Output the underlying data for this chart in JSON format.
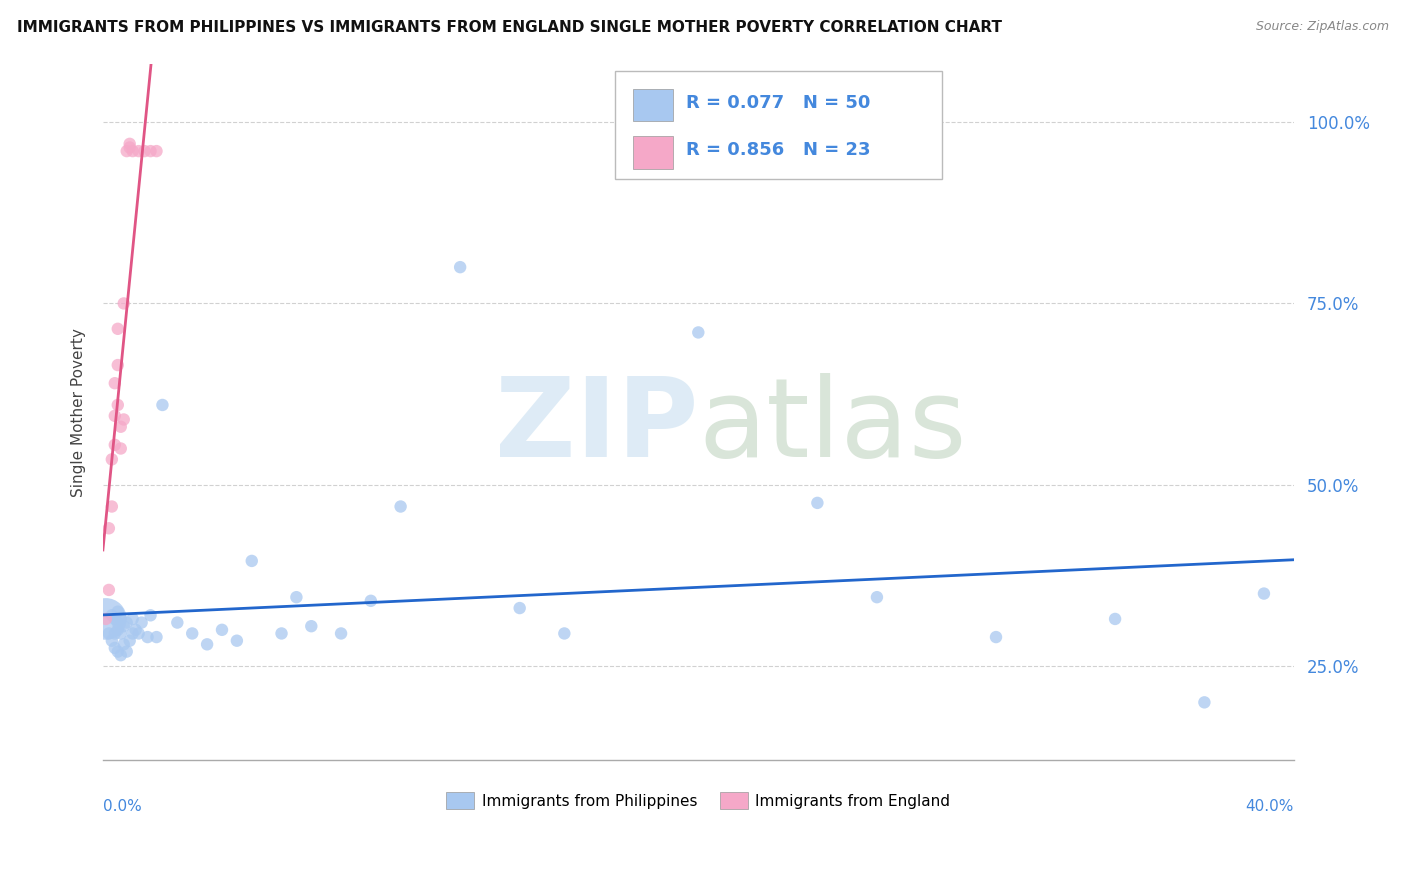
{
  "title": "IMMIGRANTS FROM PHILIPPINES VS IMMIGRANTS FROM ENGLAND SINGLE MOTHER POVERTY CORRELATION CHART",
  "source": "Source: ZipAtlas.com",
  "ylabel": "Single Mother Poverty",
  "ytick_vals": [
    0.25,
    0.5,
    0.75,
    1.0
  ],
  "ytick_labels": [
    "25.0%",
    "50.0%",
    "75.0%",
    "100.0%"
  ],
  "xlim": [
    0.0,
    0.4
  ],
  "ylim": [
    0.12,
    1.08
  ],
  "legend_label1": "Immigrants from Philippines",
  "legend_label2": "Immigrants from England",
  "R1": 0.077,
  "N1": 50,
  "R2": 0.856,
  "N2": 23,
  "color1": "#a8c8f0",
  "color2": "#f5a8c8",
  "line_color1": "#2266cc",
  "line_color2": "#e05585",
  "bg_color": "#ffffff",
  "grid_color": "#cccccc",
  "title_color": "#111111",
  "tick_color": "#4488dd",
  "philippines_x": [
    0.001,
    0.002,
    0.003,
    0.003,
    0.004,
    0.004,
    0.004,
    0.005,
    0.005,
    0.005,
    0.005,
    0.006,
    0.006,
    0.006,
    0.007,
    0.007,
    0.008,
    0.008,
    0.009,
    0.01,
    0.01,
    0.011,
    0.012,
    0.013,
    0.015,
    0.016,
    0.018,
    0.02,
    0.025,
    0.03,
    0.035,
    0.04,
    0.045,
    0.05,
    0.06,
    0.065,
    0.07,
    0.08,
    0.09,
    0.1,
    0.12,
    0.14,
    0.155,
    0.2,
    0.24,
    0.26,
    0.3,
    0.34,
    0.37,
    0.39
  ],
  "philippines_y": [
    0.315,
    0.295,
    0.285,
    0.32,
    0.275,
    0.295,
    0.315,
    0.27,
    0.3,
    0.31,
    0.325,
    0.265,
    0.295,
    0.315,
    0.28,
    0.305,
    0.27,
    0.31,
    0.285,
    0.315,
    0.295,
    0.3,
    0.295,
    0.31,
    0.29,
    0.32,
    0.29,
    0.61,
    0.31,
    0.295,
    0.28,
    0.3,
    0.285,
    0.395,
    0.295,
    0.345,
    0.305,
    0.295,
    0.34,
    0.47,
    0.8,
    0.33,
    0.295,
    0.71,
    0.475,
    0.345,
    0.29,
    0.315,
    0.2,
    0.35
  ],
  "philippines_sizes": [
    900,
    80,
    80,
    80,
    80,
    80,
    80,
    80,
    80,
    80,
    80,
    80,
    80,
    80,
    80,
    80,
    80,
    80,
    80,
    80,
    80,
    80,
    80,
    80,
    80,
    80,
    80,
    80,
    80,
    80,
    80,
    80,
    80,
    80,
    80,
    80,
    80,
    80,
    80,
    80,
    80,
    80,
    80,
    80,
    80,
    80,
    80,
    80,
    80,
    80
  ],
  "england_x": [
    0.001,
    0.002,
    0.002,
    0.003,
    0.003,
    0.004,
    0.004,
    0.004,
    0.005,
    0.005,
    0.005,
    0.006,
    0.006,
    0.007,
    0.007,
    0.008,
    0.009,
    0.009,
    0.01,
    0.012,
    0.014,
    0.016,
    0.018
  ],
  "england_y": [
    0.315,
    0.355,
    0.44,
    0.47,
    0.535,
    0.555,
    0.595,
    0.64,
    0.61,
    0.665,
    0.715,
    0.55,
    0.58,
    0.59,
    0.75,
    0.96,
    0.965,
    0.97,
    0.96,
    0.96,
    0.96,
    0.96,
    0.96
  ],
  "england_sizes": [
    80,
    80,
    80,
    80,
    80,
    80,
    80,
    80,
    80,
    80,
    80,
    80,
    80,
    80,
    80,
    80,
    80,
    80,
    80,
    80,
    80,
    80,
    80
  ]
}
